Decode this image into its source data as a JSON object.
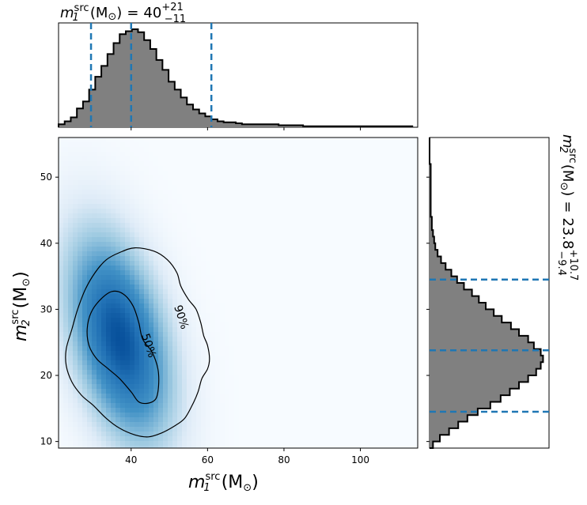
{
  "chart_data": {
    "type": "corner",
    "main": {
      "type": "heatmap",
      "xlabel": {
        "main": "m",
        "sub": "1",
        "sup": "src",
        "unit": "(M",
        "unit_sub": "⊙",
        "unit_close": ")"
      },
      "ylabel": {
        "main": "m",
        "sub": "2",
        "sup": "src",
        "unit": "(M",
        "unit_sub": "⊙",
        "unit_close": ")"
      },
      "xlim": [
        21,
        115
      ],
      "ylim": [
        9,
        56
      ],
      "xticks": [
        40,
        60,
        80,
        100
      ],
      "yticks": [
        10,
        20,
        30,
        40,
        50
      ],
      "density_peak": {
        "x": 37,
        "y": 25.5
      },
      "colormap": "Blues",
      "contours": [
        {
          "label": "50%",
          "points": [
            [
              35,
              32.7
            ],
            [
              32,
              31.5
            ],
            [
              29.5,
              29.5
            ],
            [
              28.5,
              27
            ],
            [
              29,
              24.5
            ],
            [
              31,
              22.5
            ],
            [
              34,
              21
            ],
            [
              37,
              19.5
            ],
            [
              40,
              17.5
            ],
            [
              42,
              16
            ],
            [
              44.5,
              15.8
            ],
            [
              46.5,
              16.5
            ],
            [
              47.2,
              18.5
            ],
            [
              47,
              21
            ],
            [
              45.5,
              23.5
            ],
            [
              43,
              25.5
            ],
            [
              42,
              28
            ],
            [
              40.5,
              30.5
            ],
            [
              38,
              32.3
            ]
          ],
          "label_pos": [
            44.5,
            24.5
          ],
          "label_rotation": 72
        },
        {
          "label": "90%",
          "points": [
            [
              41,
              39.3
            ],
            [
              37,
              38.6
            ],
            [
              33.5,
              37.5
            ],
            [
              30.5,
              35.5
            ],
            [
              28,
              33
            ],
            [
              26,
              30
            ],
            [
              24.5,
              27
            ],
            [
              23,
              24
            ],
            [
              23,
              21.5
            ],
            [
              24.5,
              19
            ],
            [
              27,
              17
            ],
            [
              30,
              15.5
            ],
            [
              33.5,
              13.5
            ],
            [
              37,
              12
            ],
            [
              41,
              11
            ],
            [
              44.5,
              10.7
            ],
            [
              48,
              11.3
            ],
            [
              51.5,
              12.4
            ],
            [
              54,
              13.5
            ],
            [
              56,
              15.5
            ],
            [
              57.5,
              17.5
            ],
            [
              58.5,
              19.5
            ],
            [
              60,
              21
            ],
            [
              60.5,
              22.5
            ],
            [
              60,
              24.5
            ],
            [
              59,
              26
            ],
            [
              58.2,
              28
            ],
            [
              57,
              30
            ],
            [
              55,
              31.5
            ],
            [
              53,
              33.5
            ],
            [
              52,
              35.5
            ],
            [
              49.5,
              37.5
            ],
            [
              46,
              38.8
            ]
          ],
          "label_pos": [
            53,
            28.8
          ],
          "label_rotation": 72
        }
      ]
    },
    "top": {
      "type": "histogram",
      "title": {
        "main": "m",
        "sub": "1",
        "sup": "src",
        "unit": "(M",
        "unit_sub": "⊙",
        "unit_close": ")",
        "eq": "=",
        "value": "40",
        "err_plus": "+21",
        "err_minus": "−11"
      },
      "bin_start": 21,
      "bin_width": 1.6,
      "counts": [
        0.03,
        0.06,
        0.1,
        0.19,
        0.26,
        0.38,
        0.51,
        0.62,
        0.74,
        0.85,
        0.94,
        0.97,
        0.99,
        0.96,
        0.88,
        0.79,
        0.68,
        0.58,
        0.46,
        0.38,
        0.3,
        0.23,
        0.18,
        0.14,
        0.11,
        0.08,
        0.06,
        0.05,
        0.05,
        0.04,
        0.03,
        0.03,
        0.03,
        0.03,
        0.03,
        0.03,
        0.02,
        0.02,
        0.02,
        0.02,
        0.01,
        0.01,
        0.01,
        0.01,
        0.01,
        0.01,
        0.01,
        0.01,
        0.01,
        0.01,
        0.01,
        0.01,
        0.01,
        0.01,
        0.01,
        0.01,
        0.01,
        0.01
      ],
      "quantile_lines": [
        29.5,
        40,
        61
      ]
    },
    "right": {
      "type": "histogram",
      "orientation": "horizontal",
      "title": {
        "main": "m",
        "sub": "2",
        "sup": "src",
        "unit": "(M",
        "unit_sub": "⊙",
        "unit_close": ")",
        "eq": "=",
        "value": "23.8",
        "err_plus": "+10.7",
        "err_minus": "−9.4"
      },
      "bin_start": 9,
      "bin_width": 1.0,
      "counts": [
        0.03,
        0.09,
        0.17,
        0.25,
        0.33,
        0.42,
        0.53,
        0.62,
        0.7,
        0.78,
        0.86,
        0.93,
        0.97,
        0.99,
        0.97,
        0.91,
        0.86,
        0.78,
        0.71,
        0.63,
        0.56,
        0.49,
        0.43,
        0.37,
        0.3,
        0.24,
        0.19,
        0.14,
        0.1,
        0.07,
        0.05,
        0.04,
        0.03,
        0.02,
        0.02,
        0.01,
        0.01,
        0.01,
        0.01,
        0.01,
        0.01,
        0.01,
        0.01,
        0.0,
        0.0,
        0.0,
        0.0
      ],
      "quantile_lines": [
        14.5,
        23.8,
        34.5
      ]
    }
  }
}
